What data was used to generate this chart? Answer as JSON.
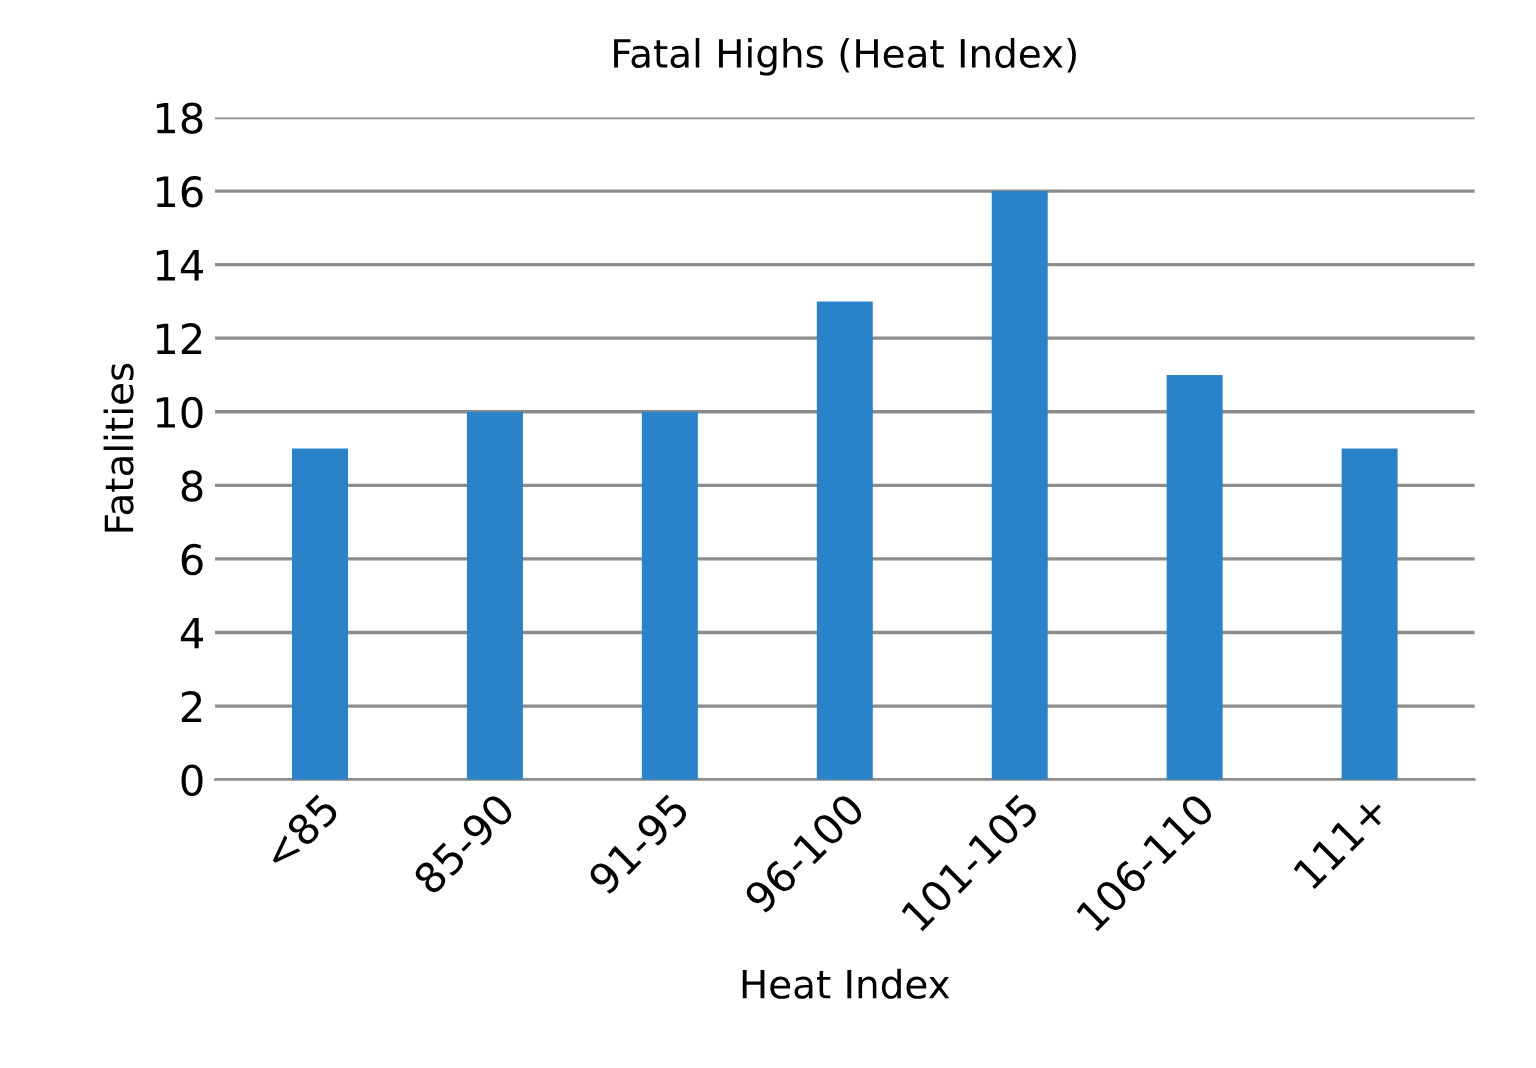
{
  "chart_data": {
    "type": "bar",
    "title": "Fatal Highs (Heat Index)",
    "xlabel": "Heat Index",
    "ylabel": "Fatalities",
    "categories": [
      "<85",
      "85-90",
      "91-95",
      "96-100",
      "101-105",
      "106-110",
      "111+"
    ],
    "values": [
      9,
      10,
      10,
      13,
      16,
      11,
      9
    ],
    "color": "#2a82c9",
    "ylim": [
      0,
      18
    ],
    "yticks": [
      0,
      2,
      4,
      6,
      8,
      10,
      12,
      14,
      16,
      18
    ],
    "grid": "y",
    "legend": false
  }
}
